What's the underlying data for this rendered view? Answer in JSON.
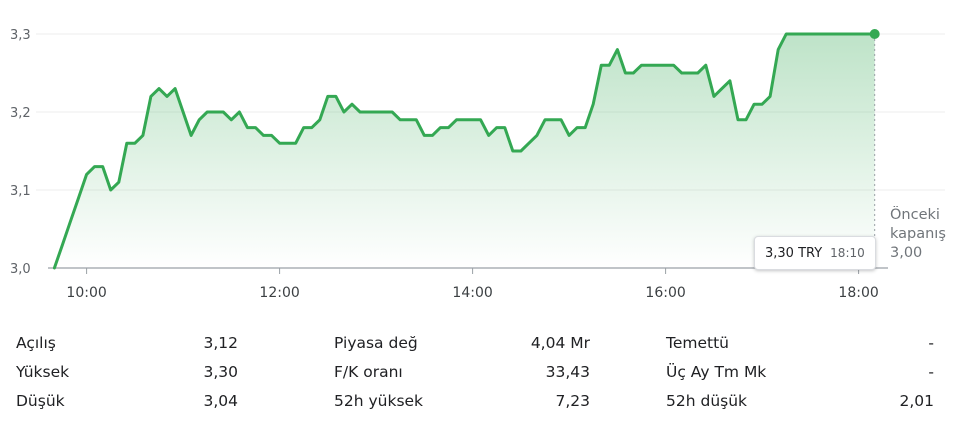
{
  "chart_data": {
    "type": "area",
    "currency": "TRY",
    "ylim": [
      3.0,
      3.3
    ],
    "y_ticks": [
      "3,0",
      "3,1",
      "3,2",
      "3,3"
    ],
    "x_ticks": [
      "10:00",
      "12:00",
      "14:00",
      "16:00",
      "18:00"
    ],
    "x": [
      "09:40",
      "09:45",
      "09:50",
      "09:55",
      "10:00",
      "10:05",
      "10:10",
      "10:15",
      "10:20",
      "10:25",
      "10:30",
      "10:35",
      "10:40",
      "10:45",
      "10:50",
      "10:55",
      "11:00",
      "11:05",
      "11:10",
      "11:15",
      "11:20",
      "11:25",
      "11:30",
      "11:35",
      "11:40",
      "11:45",
      "11:50",
      "11:55",
      "12:00",
      "12:05",
      "12:10",
      "12:15",
      "12:20",
      "12:25",
      "12:30",
      "12:35",
      "12:40",
      "12:45",
      "12:50",
      "12:55",
      "13:00",
      "13:05",
      "13:10",
      "13:15",
      "13:20",
      "13:25",
      "13:30",
      "13:35",
      "13:40",
      "13:45",
      "13:50",
      "13:55",
      "14:00",
      "14:05",
      "14:10",
      "14:15",
      "14:20",
      "14:25",
      "14:30",
      "14:35",
      "14:40",
      "14:45",
      "14:50",
      "14:55",
      "15:00",
      "15:05",
      "15:10",
      "15:15",
      "15:20",
      "15:25",
      "15:30",
      "15:35",
      "15:40",
      "15:45",
      "15:50",
      "15:55",
      "16:00",
      "16:05",
      "16:10",
      "16:15",
      "16:20",
      "16:25",
      "16:30",
      "16:35",
      "16:40",
      "16:45",
      "16:50",
      "16:55",
      "17:00",
      "17:05",
      "17:10",
      "17:15",
      "17:20",
      "17:25",
      "17:30",
      "17:35",
      "17:40",
      "17:45",
      "17:50",
      "17:55",
      "18:00",
      "18:05",
      "18:10"
    ],
    "values": [
      3.0,
      3.03,
      3.06,
      3.09,
      3.12,
      3.13,
      3.13,
      3.1,
      3.11,
      3.16,
      3.16,
      3.17,
      3.22,
      3.23,
      3.22,
      3.23,
      3.2,
      3.17,
      3.19,
      3.2,
      3.2,
      3.2,
      3.19,
      3.2,
      3.18,
      3.18,
      3.17,
      3.17,
      3.16,
      3.16,
      3.16,
      3.18,
      3.18,
      3.19,
      3.22,
      3.22,
      3.2,
      3.21,
      3.2,
      3.2,
      3.2,
      3.2,
      3.2,
      3.19,
      3.19,
      3.19,
      3.17,
      3.17,
      3.18,
      3.18,
      3.19,
      3.19,
      3.19,
      3.19,
      3.17,
      3.18,
      3.18,
      3.15,
      3.15,
      3.16,
      3.17,
      3.19,
      3.19,
      3.19,
      3.17,
      3.18,
      3.18,
      3.21,
      3.26,
      3.26,
      3.28,
      3.25,
      3.25,
      3.26,
      3.26,
      3.26,
      3.26,
      3.26,
      3.25,
      3.25,
      3.25,
      3.26,
      3.22,
      3.23,
      3.24,
      3.19,
      3.19,
      3.21,
      3.21,
      3.22,
      3.28,
      3.3,
      3.3,
      3.3,
      3.3,
      3.3,
      3.3,
      3.3,
      3.3,
      3.3,
      3.3,
      3.3,
      3.3
    ],
    "previous_close_label": [
      "Önceki",
      "kapanış",
      "3,00"
    ],
    "tooltip": {
      "price": "3,30 TRY",
      "time": "18:10"
    },
    "colors": {
      "line": "#34a853",
      "area_top": "#34a853",
      "grid": "#eeeeee",
      "baseline": "#9aa0a6"
    }
  },
  "stats": {
    "rows": [
      {
        "c1": [
          "Açılış",
          "3,12"
        ],
        "c2": [
          "Piyasa değ",
          "4,04 Mr"
        ],
        "c3": [
          "Temettü",
          "-"
        ]
      },
      {
        "c1": [
          "Yüksek",
          "3,30"
        ],
        "c2": [
          "F/K oranı",
          "33,43"
        ],
        "c3": [
          "Üç Ay Tm Mk",
          "-"
        ]
      },
      {
        "c1": [
          "Düşük",
          "3,04"
        ],
        "c2": [
          "52h yüksek",
          "7,23"
        ],
        "c3": [
          "52h düşük",
          "2,01"
        ]
      }
    ]
  }
}
